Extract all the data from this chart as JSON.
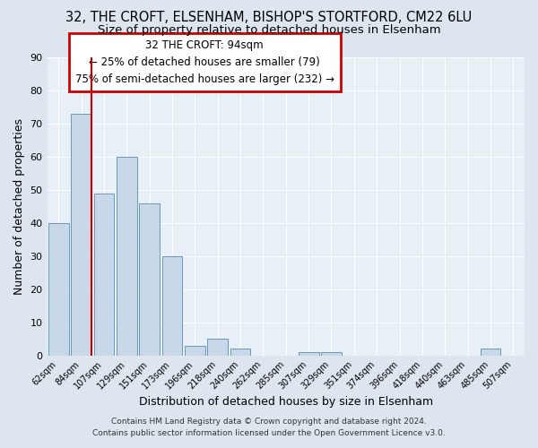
{
  "title": "32, THE CROFT, ELSENHAM, BISHOP'S STORTFORD, CM22 6LU",
  "subtitle": "Size of property relative to detached houses in Elsenham",
  "xlabel": "Distribution of detached houses by size in Elsenham",
  "ylabel": "Number of detached properties",
  "bin_labels": [
    "62sqm",
    "84sqm",
    "107sqm",
    "129sqm",
    "151sqm",
    "173sqm",
    "196sqm",
    "218sqm",
    "240sqm",
    "262sqm",
    "285sqm",
    "307sqm",
    "329sqm",
    "351sqm",
    "374sqm",
    "396sqm",
    "418sqm",
    "440sqm",
    "463sqm",
    "485sqm",
    "507sqm"
  ],
  "bar_heights": [
    40,
    73,
    49,
    60,
    46,
    30,
    3,
    5,
    2,
    0,
    0,
    1,
    1,
    0,
    0,
    0,
    0,
    0,
    0,
    2,
    0
  ],
  "bar_color": "#c8d8e8",
  "bar_edge_color": "#6699bb",
  "vline_color": "#cc0000",
  "annotation_title": "32 THE CROFT: 94sqm",
  "annotation_line1": "← 25% of detached houses are smaller (79)",
  "annotation_line2": "75% of semi-detached houses are larger (232) →",
  "annotation_box_color": "#cc0000",
  "ylim": [
    0,
    90
  ],
  "yticks": [
    0,
    10,
    20,
    30,
    40,
    50,
    60,
    70,
    80,
    90
  ],
  "footer_line1": "Contains HM Land Registry data © Crown copyright and database right 2024.",
  "footer_line2": "Contains public sector information licensed under the Open Government Licence v3.0.",
  "bg_color": "#dde6ef",
  "plot_bg_color": "#e8eff6",
  "grid_color": "#ffffff",
  "title_fontsize": 10.5,
  "subtitle_fontsize": 9.5
}
